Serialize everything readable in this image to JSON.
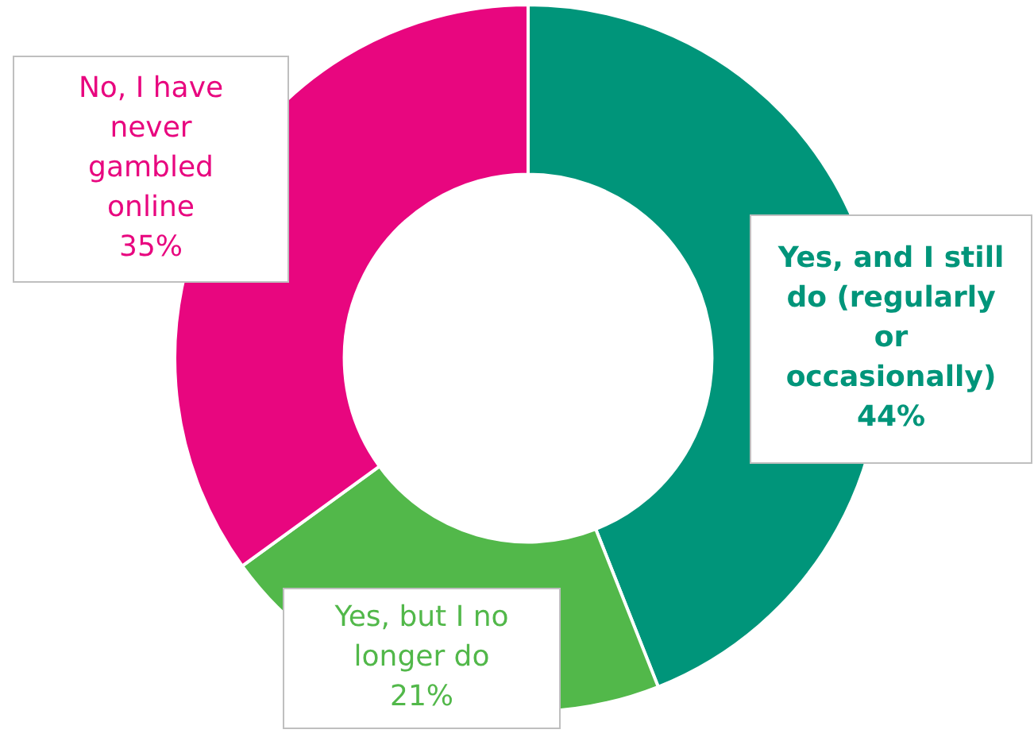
{
  "chart_data": {
    "type": "donut",
    "categories": [
      "Yes, and I still do (regularly or occasionally)",
      "Yes, but I no longer do",
      "No, I have never gambled online"
    ],
    "values": [
      44,
      21,
      35
    ],
    "colors": [
      "#00957a",
      "#52b84a",
      "#e8067f"
    ],
    "value_labels": [
      "44%",
      "21%",
      "35%"
    ],
    "legend": false
  }
}
